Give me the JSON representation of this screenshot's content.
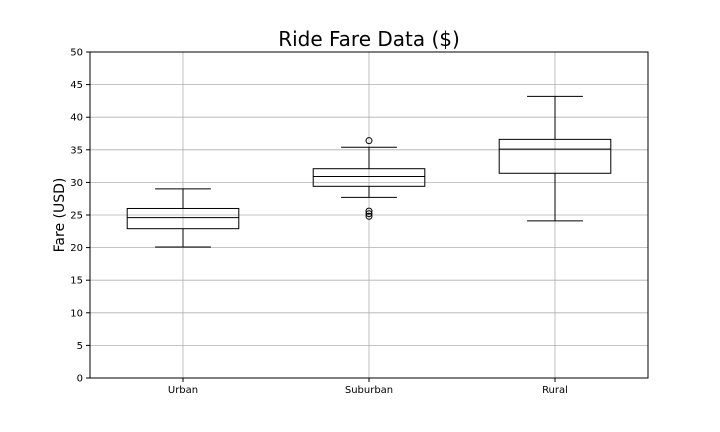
{
  "chart_data": {
    "type": "box",
    "title": "Ride Fare Data ($)",
    "xlabel": "",
    "ylabel": "Fare (USD)",
    "ylim": [
      0,
      50
    ],
    "yticks": [
      0,
      5,
      10,
      15,
      20,
      25,
      30,
      35,
      40,
      45,
      50
    ],
    "grid": true,
    "categories": [
      "Urban",
      "Suburban",
      "Rural"
    ],
    "boxes": [
      {
        "category": "Urban",
        "whisker_low": 20.1,
        "q1": 22.9,
        "median": 24.6,
        "q3": 26.0,
        "whisker_high": 29.0,
        "fliers": []
      },
      {
        "category": "Suburban",
        "whisker_low": 27.7,
        "q1": 29.4,
        "median": 30.9,
        "q3": 32.1,
        "whisker_high": 35.4,
        "fliers": [
          36.4,
          25.6,
          25.2,
          24.8
        ]
      },
      {
        "category": "Rural",
        "whisker_low": 24.1,
        "q1": 31.4,
        "median": 35.1,
        "q3": 36.6,
        "whisker_high": 43.2,
        "fliers": []
      }
    ]
  }
}
